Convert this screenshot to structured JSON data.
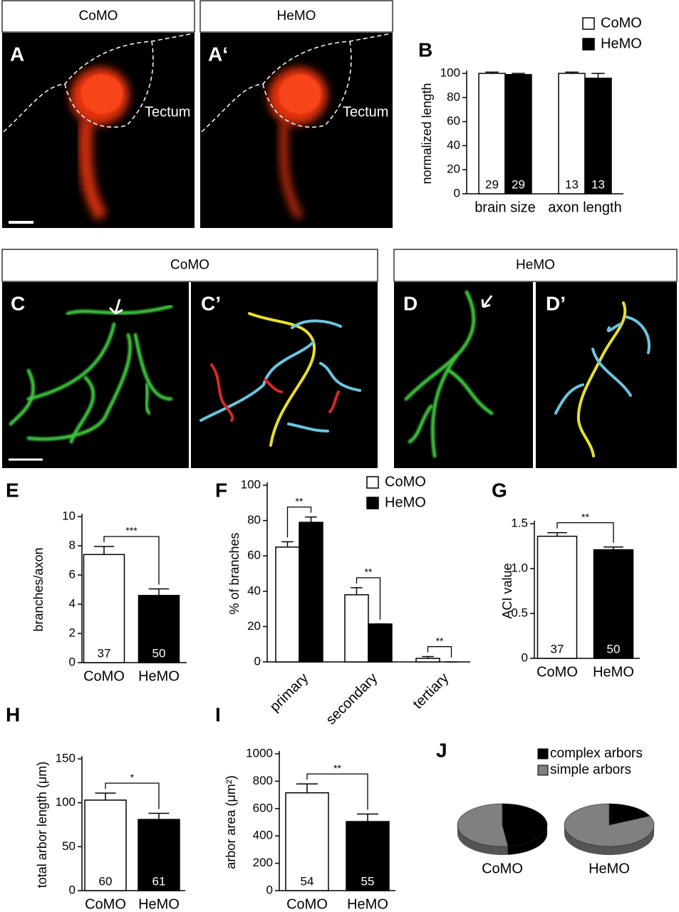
{
  "image_panels": [
    {
      "header": "CoMO",
      "labels": [
        "A"
      ],
      "annotation": "Tectum"
    },
    {
      "header": "HeMO",
      "labels": [
        "A‘"
      ],
      "annotation": "Tectum"
    },
    {
      "header": "CoMO",
      "labels": [
        "C",
        "C’"
      ]
    },
    {
      "header": "HeMO",
      "labels": [
        "D",
        "D’"
      ]
    }
  ],
  "chart_data": [
    {
      "type": "bar",
      "panel_label": "B",
      "y_label": "normalized length",
      "categories": [
        "brain size",
        "axon length"
      ],
      "series": [
        {
          "name": "CoMO",
          "color": "#ffffff",
          "values": [
            100,
            100
          ],
          "errors": [
            1,
            1
          ],
          "n": [
            29,
            13
          ]
        },
        {
          "name": "HeMO",
          "color": "#000000",
          "values": [
            99,
            96
          ],
          "errors": [
            1,
            4
          ],
          "n": [
            29,
            13
          ]
        }
      ],
      "ylim": [
        0,
        100
      ],
      "yticks": [
        0,
        20,
        40,
        60,
        80,
        100
      ],
      "legend": "top-right"
    },
    {
      "type": "bar",
      "panel_label": "E",
      "y_label": "branches/axon",
      "categories": [
        "CoMO",
        "HeMO"
      ],
      "values": [
        7.4,
        4.6
      ],
      "errors": [
        0.55,
        0.45
      ],
      "n": [
        37,
        50
      ],
      "colors": [
        "#ffffff",
        "#000000"
      ],
      "ylim": [
        0,
        10
      ],
      "yticks": [
        0,
        2,
        4,
        6,
        8,
        10
      ],
      "significance": "***"
    },
    {
      "type": "bar",
      "panel_label": "F",
      "y_label": "% of branches",
      "categories": [
        "primary",
        "secondary",
        "tertiary"
      ],
      "series": [
        {
          "name": "CoMO",
          "color": "#ffffff",
          "values": [
            65,
            38,
            2
          ],
          "errors": [
            3,
            4,
            1
          ]
        },
        {
          "name": "HeMO",
          "color": "#000000",
          "values": [
            79,
            21.5,
            0
          ],
          "errors": [
            3,
            0,
            0
          ]
        }
      ],
      "ylim": [
        0,
        100
      ],
      "yticks": [
        0,
        20,
        40,
        60,
        80,
        100
      ],
      "legend": "top-right",
      "significance": [
        "**",
        "**",
        "**"
      ]
    },
    {
      "type": "bar",
      "panel_label": "G",
      "y_label": "ACI value",
      "categories": [
        "CoMO",
        "HeMO"
      ],
      "values": [
        1.36,
        1.21
      ],
      "errors": [
        0.04,
        0.03
      ],
      "n": [
        37,
        50
      ],
      "colors": [
        "#ffffff",
        "#000000"
      ],
      "ylim": [
        0,
        1.5
      ],
      "yticks": [
        0,
        0.5,
        {
          "value": 1,
          "label": "1.0"
        },
        1.5
      ],
      "significance": "**"
    },
    {
      "type": "bar",
      "panel_label": "H",
      "y_label": "total arbor length (μm)",
      "categories": [
        "CoMO",
        "HeMO"
      ],
      "values": [
        103,
        81
      ],
      "errors": [
        8,
        7
      ],
      "n": [
        60,
        61
      ],
      "colors": [
        "#ffffff",
        "#000000"
      ],
      "ylim": [
        0,
        150
      ],
      "yticks": [
        0,
        50,
        100,
        150
      ],
      "significance": "*"
    },
    {
      "type": "bar",
      "panel_label": "I",
      "y_label": "arbor area (μm²)",
      "categories": [
        "CoMO",
        "HeMO"
      ],
      "values": [
        715,
        505
      ],
      "errors": [
        65,
        55
      ],
      "n": [
        54,
        55
      ],
      "colors": [
        "#ffffff",
        "#000000"
      ],
      "ylim": [
        0,
        1000
      ],
      "yticks": [
        0,
        200,
        400,
        600,
        800,
        1000
      ],
      "significance": "**"
    },
    {
      "type": "pie",
      "panel_label": "J",
      "categories": [
        "complex arbors",
        "simple arbors"
      ],
      "colors": [
        "#000000",
        "#808080"
      ],
      "pies": [
        {
          "name": "CoMO",
          "values": [
            48,
            52
          ]
        },
        {
          "name": "HeMO",
          "values": [
            18,
            82
          ]
        }
      ]
    }
  ]
}
